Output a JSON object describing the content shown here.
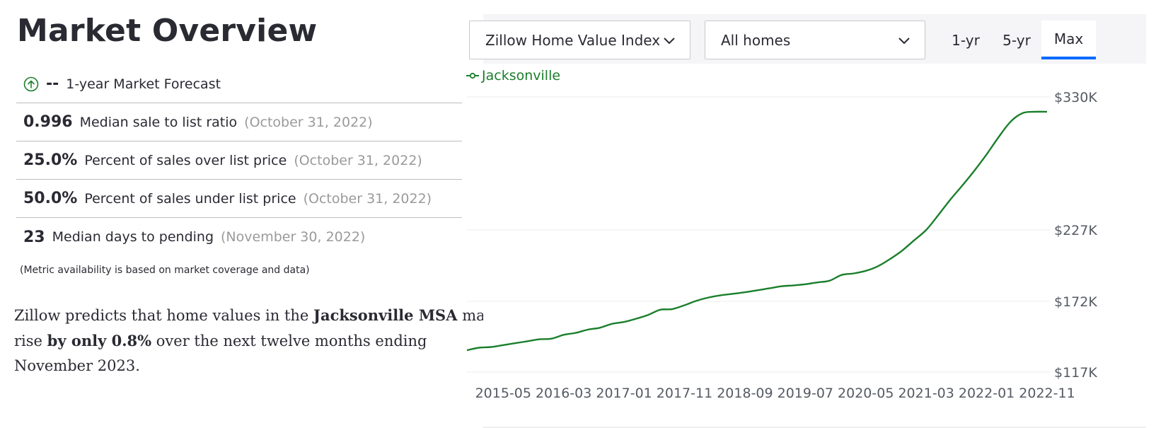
{
  "page": {
    "title": "Market Overview",
    "metrics": [
      {
        "value": "--",
        "label": "1-year Market Forecast",
        "date": "",
        "icon": "arrow-up-circle-icon"
      },
      {
        "value": "0.996",
        "label": "Median sale to list ratio",
        "date": "(October 31, 2022)"
      },
      {
        "value": "25.0%",
        "label": "Percent of sales over list price",
        "date": "(October 31, 2022)"
      },
      {
        "value": "50.0%",
        "label": "Percent of sales under list price",
        "date": "(October 31, 2022)"
      },
      {
        "value": "23",
        "label": "Median days to pending",
        "date": "(November 30, 2022)"
      }
    ],
    "note": "(Metric availability is based on market coverage and data)",
    "prediction": {
      "part1": "Zillow predicts that home values in the ",
      "region": "Jacksonville MSA",
      "part2": " may rise ",
      "change": "by only 0.8%",
      "part3": " over the next twelve months ending November 2023."
    }
  },
  "controls": {
    "metric_select": "Zillow Home Value Index",
    "home_type_select": "All homes",
    "ranges": [
      "1-yr",
      "5-yr",
      "Max"
    ],
    "active_range": "Max"
  },
  "colors": {
    "series": "#1a7f2b",
    "accent": "#006aff",
    "forecast_icon": "#1a7f2b"
  },
  "chart_data": {
    "type": "line",
    "title": "",
    "xlabel": "",
    "ylabel": "",
    "legend": "top-left",
    "grid": true,
    "y_ticks": [
      117000,
      172000,
      227000,
      330000
    ],
    "y_tick_labels": [
      "$117K",
      "$172K",
      "$227K",
      "$330K"
    ],
    "x_ticks": [
      "2015-05",
      "2016-03",
      "2017-01",
      "2017-11",
      "2018-09",
      "2019-07",
      "2020-05",
      "2021-03",
      "2022-01",
      "2022-11"
    ],
    "series": [
      {
        "name": "Jacksonville",
        "x": [
          "2014-11",
          "2015-01",
          "2015-03",
          "2015-05",
          "2015-07",
          "2015-09",
          "2015-11",
          "2016-01",
          "2016-03",
          "2016-05",
          "2016-07",
          "2016-09",
          "2016-11",
          "2017-01",
          "2017-03",
          "2017-05",
          "2017-07",
          "2017-09",
          "2017-11",
          "2018-01",
          "2018-03",
          "2018-05",
          "2018-07",
          "2018-09",
          "2018-11",
          "2019-01",
          "2019-03",
          "2019-05",
          "2019-07",
          "2019-09",
          "2019-11",
          "2020-01",
          "2020-03",
          "2020-05",
          "2020-07",
          "2020-09",
          "2020-11",
          "2021-01",
          "2021-03",
          "2021-05",
          "2021-07",
          "2021-09",
          "2021-11",
          "2022-01",
          "2022-03",
          "2022-05",
          "2022-07",
          "2022-09",
          "2022-11"
        ],
        "y": [
          134000,
          136000,
          136500,
          138000,
          139500,
          141000,
          142500,
          143000,
          146000,
          147500,
          150000,
          151500,
          154500,
          156000,
          158500,
          161500,
          165500,
          166000,
          169000,
          172500,
          175000,
          176700,
          177800,
          179000,
          180500,
          182000,
          183600,
          184300,
          185200,
          186600,
          187900,
          192300,
          193500,
          195500,
          199000,
          204500,
          211000,
          219000,
          227000,
          238500,
          250500,
          261500,
          273000,
          285500,
          299000,
          311000,
          317500,
          318500,
          318500
        ]
      }
    ]
  }
}
